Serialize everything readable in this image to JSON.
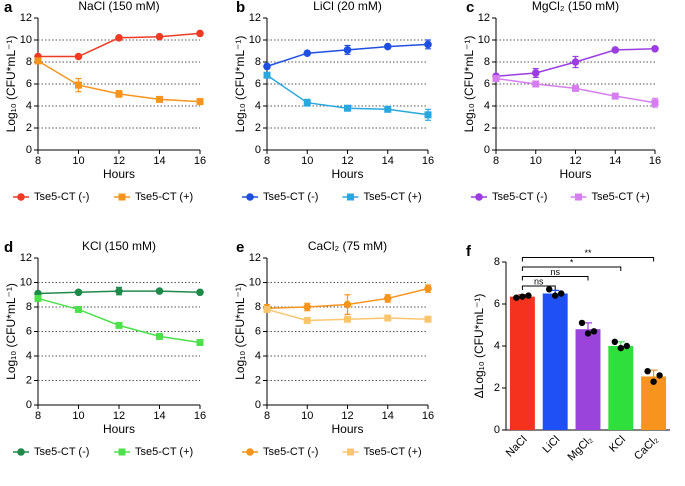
{
  "chart_data": [
    {
      "type": "line",
      "panel_label": "a",
      "title": "NaCl (150 mM)",
      "xlabel": "Hours",
      "ylabel": "Log₁₀ (CFU*mL⁻¹)",
      "x": [
        8,
        10,
        12,
        14,
        16
      ],
      "xlim": [
        8,
        16
      ],
      "xticks": [
        8,
        10,
        12,
        14,
        16
      ],
      "ylim": [
        0,
        12
      ],
      "yticks": [
        0,
        2,
        4,
        6,
        8,
        10,
        12
      ],
      "grid": true,
      "legend_position": "bottom",
      "series": [
        {
          "name": "Tse5-CT (-)",
          "color": "#f03a24",
          "marker": "circle",
          "values": [
            8.5,
            8.5,
            10.2,
            10.3,
            10.6
          ],
          "errors": [
            0.1,
            0.1,
            0.1,
            0.1,
            0.1
          ]
        },
        {
          "name": "Tse5-CT (+)",
          "color": "#f7941d",
          "marker": "square",
          "values": [
            8.1,
            5.9,
            5.1,
            4.6,
            4.4
          ],
          "errors": [
            0.2,
            0.6,
            0.3,
            0.1,
            0.1
          ]
        }
      ]
    },
    {
      "type": "line",
      "panel_label": "b",
      "title": "LiCl (20 mM)",
      "xlabel": "Hours",
      "ylabel": "Log₁₀ (CFU*mL⁻¹)",
      "x": [
        8,
        10,
        12,
        14,
        16
      ],
      "xlim": [
        8,
        16
      ],
      "xticks": [
        8,
        10,
        12,
        14,
        16
      ],
      "ylim": [
        0,
        12
      ],
      "yticks": [
        0,
        2,
        4,
        6,
        8,
        10,
        12
      ],
      "grid": true,
      "legend_position": "bottom",
      "series": [
        {
          "name": "Tse5-CT (-)",
          "color": "#1f4fe0",
          "marker": "circle",
          "values": [
            7.6,
            8.8,
            9.1,
            9.4,
            9.6
          ],
          "errors": [
            0.2,
            0.1,
            0.4,
            0.1,
            0.4
          ]
        },
        {
          "name": "Tse5-CT (+)",
          "color": "#29a8e0",
          "marker": "square",
          "values": [
            6.8,
            4.3,
            3.8,
            3.7,
            3.2
          ],
          "errors": [
            0.2,
            0.3,
            0.1,
            0.2,
            0.5
          ]
        }
      ]
    },
    {
      "type": "line",
      "panel_label": "c",
      "title": "MgCl₂ (150 mM)",
      "xlabel": "Hours",
      "ylabel": "Log₁₀ (CFU*mL⁻¹)",
      "x": [
        8,
        10,
        12,
        14,
        16
      ],
      "xlim": [
        8,
        16
      ],
      "xticks": [
        8,
        10,
        12,
        14,
        16
      ],
      "ylim": [
        0,
        12
      ],
      "yticks": [
        0,
        2,
        4,
        6,
        8,
        10,
        12
      ],
      "grid": true,
      "legend_position": "bottom",
      "series": [
        {
          "name": "Tse5-CT (-)",
          "color": "#9b3de0",
          "marker": "circle",
          "values": [
            6.7,
            7.0,
            8.0,
            9.1,
            9.2
          ],
          "errors": [
            0.2,
            0.4,
            0.5,
            0.1,
            0.1
          ]
        },
        {
          "name": "Tse5-CT (+)",
          "color": "#d67ef0",
          "marker": "square",
          "values": [
            6.5,
            6.0,
            5.6,
            4.9,
            4.3
          ],
          "errors": [
            0.2,
            0.1,
            0.1,
            0.2,
            0.4
          ]
        }
      ]
    },
    {
      "type": "line",
      "panel_label": "d",
      "title": "KCl (150 mM)",
      "xlabel": "Hours",
      "ylabel": "Log₁₀ (CFU*mL⁻¹)",
      "x": [
        8,
        10,
        12,
        14,
        16
      ],
      "xlim": [
        8,
        16
      ],
      "xticks": [
        8,
        10,
        12,
        14,
        16
      ],
      "ylim": [
        0,
        12
      ],
      "yticks": [
        0,
        2,
        4,
        6,
        8,
        10,
        12
      ],
      "grid": true,
      "legend_position": "bottom",
      "series": [
        {
          "name": "Tse5-CT (-)",
          "color": "#1e8a4a",
          "marker": "circle",
          "values": [
            9.1,
            9.2,
            9.3,
            9.3,
            9.2
          ],
          "errors": [
            0.1,
            0.1,
            0.3,
            0.1,
            0.1
          ]
        },
        {
          "name": "Tse5-CT (+)",
          "color": "#4ce04a",
          "marker": "square",
          "values": [
            8.7,
            7.8,
            6.5,
            5.6,
            5.1
          ],
          "errors": [
            0.2,
            0.2,
            0.1,
            0.1,
            0.1
          ]
        }
      ]
    },
    {
      "type": "line",
      "panel_label": "e",
      "title": "CaCl₂ (75 mM)",
      "xlabel": "Hours",
      "ylabel": "Log₁₀ (CFU*mL⁻¹)",
      "x": [
        8,
        10,
        12,
        14,
        16
      ],
      "xlim": [
        8,
        16
      ],
      "xticks": [
        8,
        10,
        12,
        14,
        16
      ],
      "ylim": [
        0,
        12
      ],
      "yticks": [
        0,
        2,
        4,
        6,
        8,
        10,
        12
      ],
      "grid": true,
      "legend_position": "bottom",
      "series": [
        {
          "name": "Tse5-CT (-)",
          "color": "#f7941d",
          "marker": "circle",
          "values": [
            7.9,
            8.0,
            8.2,
            8.7,
            9.5
          ],
          "errors": [
            0.3,
            0.3,
            0.8,
            0.3,
            0.3
          ]
        },
        {
          "name": "Tse5-CT (+)",
          "color": "#f9c66e",
          "marker": "square",
          "values": [
            7.8,
            6.9,
            7.0,
            7.1,
            7.0
          ],
          "errors": [
            0.2,
            0.2,
            0.1,
            0.1,
            0.1
          ]
        }
      ]
    },
    {
      "type": "bar",
      "panel_label": "f",
      "ylabel": "ΔLog₁₀ (CFU*mL⁻¹)",
      "categories": [
        "NaCl",
        "LiCl",
        "MgCl₂",
        "KCl",
        "CaCl₂"
      ],
      "values": [
        6.35,
        6.5,
        4.8,
        4.0,
        2.55
      ],
      "errors": [
        0.1,
        0.15,
        0.3,
        0.2,
        0.3
      ],
      "colors": [
        "#f5321e",
        "#1e50f5",
        "#9b44dc",
        "#2fe03c",
        "#f7941d"
      ],
      "points": [
        [
          6.3,
          6.35,
          6.4
        ],
        [
          6.7,
          6.4,
          6.5
        ],
        [
          5.1,
          4.6,
          4.7
        ],
        [
          4.2,
          3.9,
          4.0
        ],
        [
          2.8,
          2.3,
          2.6
        ]
      ],
      "ylim": [
        0,
        8
      ],
      "yticks": [
        0,
        2,
        4,
        6,
        8
      ],
      "annotations": [
        {
          "label": "ns",
          "from": 0,
          "to": 1
        },
        {
          "label": "ns",
          "from": 0,
          "to": 2
        },
        {
          "label": "*",
          "from": 0,
          "to": 3
        },
        {
          "label": "**",
          "from": 0,
          "to": 4
        }
      ]
    }
  ]
}
